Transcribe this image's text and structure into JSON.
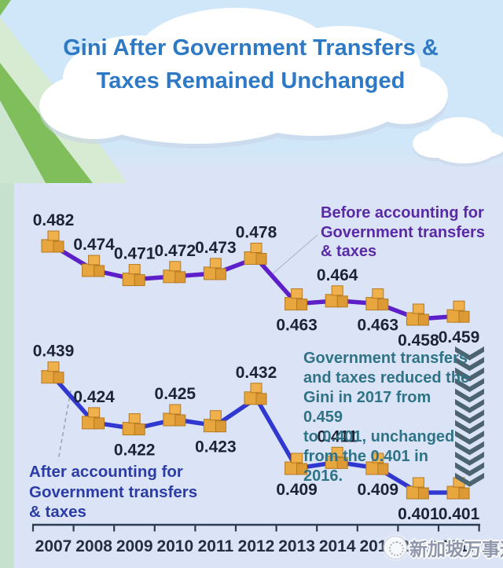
{
  "title": {
    "line1": "Gini After Government Transfers &",
    "line2": "Taxes Remained Unchanged",
    "color": "#2e79c5"
  },
  "chart_data": {
    "type": "line",
    "categories": [
      "2007",
      "2008",
      "2009",
      "2010",
      "2011",
      "2012",
      "2013",
      "2014",
      "2015",
      "2016",
      "2017"
    ],
    "series": [
      {
        "name": "Before accounting for Government transfers & taxes",
        "values": [
          0.482,
          0.474,
          0.471,
          0.472,
          0.473,
          0.478,
          0.463,
          0.464,
          0.463,
          0.458,
          0.459
        ],
        "color": "#5c1fc8",
        "label_positions": [
          "above",
          "above",
          "above",
          "above",
          "above",
          "above",
          "below",
          "above",
          "below",
          "below",
          "below"
        ]
      },
      {
        "name": "After accounting for Government transfers & taxes",
        "values": [
          0.439,
          0.424,
          0.422,
          0.425,
          0.423,
          0.432,
          0.409,
          0.411,
          0.409,
          0.401,
          0.401
        ],
        "color": "#3038cf",
        "label_positions": [
          "above",
          "above",
          "below",
          "above",
          "below",
          "above",
          "below",
          "above",
          "below",
          "below",
          "below"
        ]
      }
    ],
    "value_format_decimals": 3,
    "xlabel": "",
    "ylabel": "",
    "ylim": [
      0.395,
      0.49
    ],
    "grid": false,
    "legend_position": "inline-annotations",
    "marker_style": "orange-stacked-boxes",
    "marker_fill": "#e8a63e",
    "marker_fill_light": "#f0b14d",
    "marker_fill_dark": "#dd9934",
    "marker_stroke": "#b5791f",
    "label_color": "#1c2335",
    "axis_color": "#2c3a52"
  },
  "annotations": {
    "before": {
      "lines": [
        "Before accounting for",
        "Government transfers",
        "& taxes"
      ],
      "color": "#5a2aa6"
    },
    "note": {
      "lines": [
        "Government transfers",
        "and taxes reduced the",
        "Gini in 2017 from 0.459",
        "to 0.401, unchanged",
        "from the 0.401 in 2016."
      ],
      "color": "#2f7386"
    },
    "after": {
      "lines": [
        "After accounting for",
        "Government transfers",
        "& taxes"
      ],
      "color": "#2b3ca6"
    }
  },
  "decor": {
    "chevron_arrow_icon": "chevron-down-arrow",
    "chevron_color": "#4c6470",
    "cloud_color": "#ffffff",
    "cloud_shadow_color": "#c9d4e6",
    "sky_color": "#cfe7f8",
    "panel_color": "#dbe4f6",
    "left_strip_color": "#c6e2cf",
    "green_arrow_light": "#d7ebd3",
    "green_arrow_dark": "#7fbe5b"
  },
  "watermark": {
    "text": "新加坡万事通",
    "color": "#8e97ab"
  }
}
